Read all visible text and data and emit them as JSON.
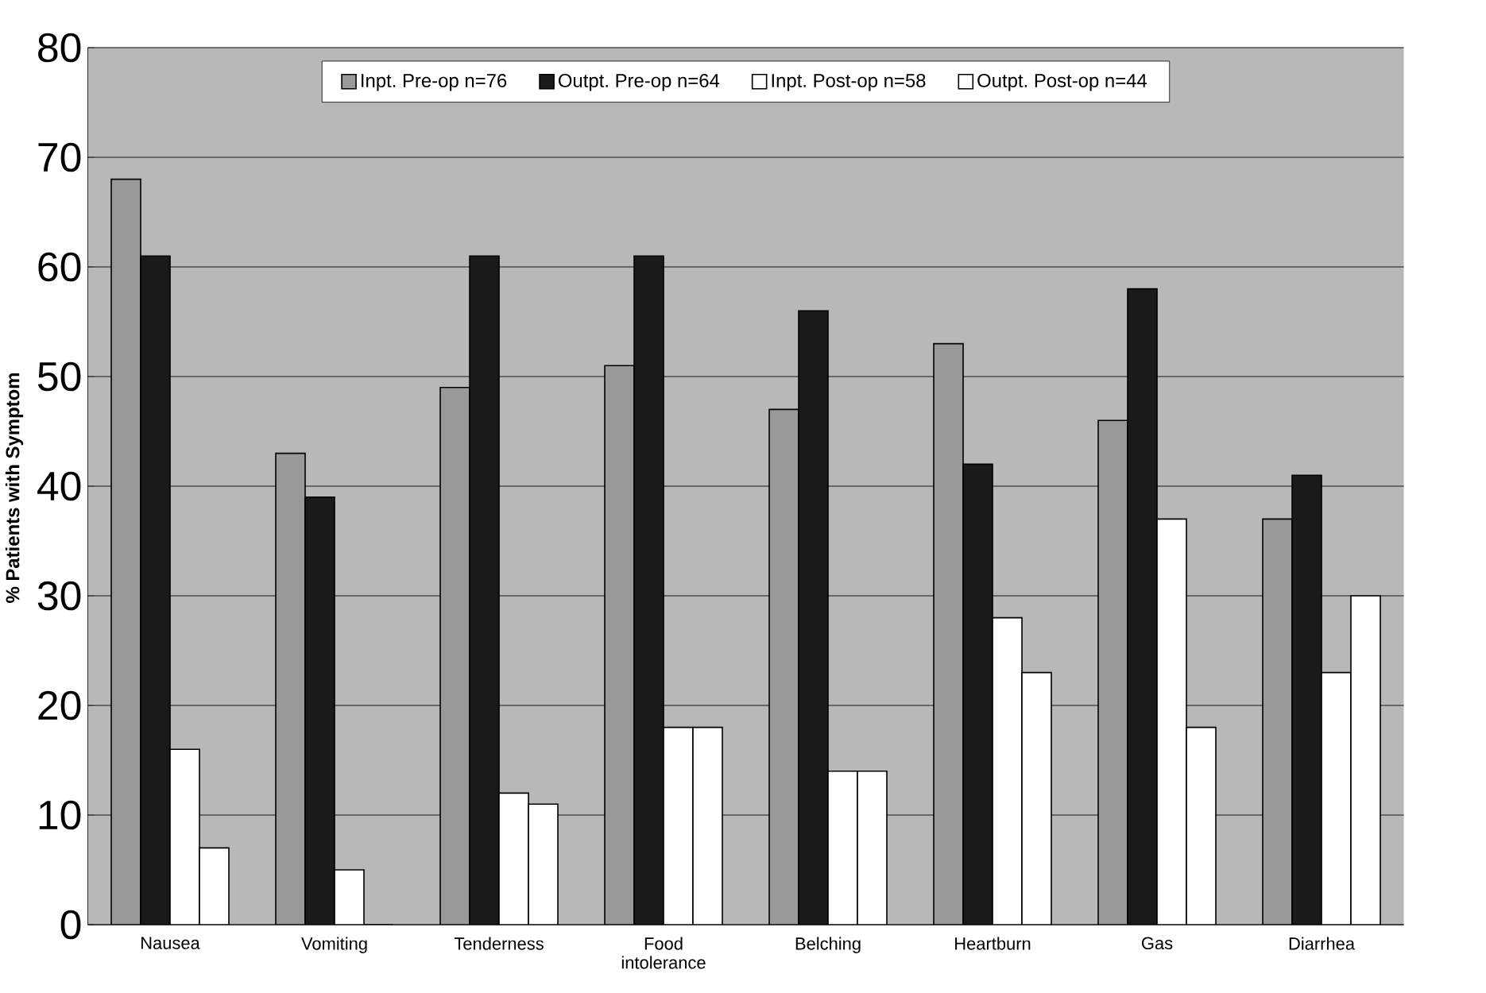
{
  "chart_data": {
    "type": "bar",
    "ylabel": "% Patients with Symptom",
    "categories": [
      "Nausea",
      "Vomiting",
      "Tenderness",
      "Food intolerance",
      "Belching",
      "Heartburn",
      "Gas",
      "Diarrhea"
    ],
    "series": [
      {
        "name": "Inpt. Pre-op n=76",
        "color": "#999999",
        "values": [
          68,
          43,
          49,
          51,
          47,
          53,
          46,
          37
        ]
      },
      {
        "name": "Outpt. Pre-op n=64",
        "color": "#1a1a1a",
        "values": [
          61,
          39,
          61,
          61,
          56,
          42,
          58,
          41
        ]
      },
      {
        "name": "Inpt. Post-op n=58",
        "color": "#ffffff",
        "values": [
          16,
          5,
          12,
          18,
          14,
          28,
          37,
          23
        ]
      },
      {
        "name": "Outpt. Post-op n=44",
        "color": "#ffffff",
        "values": [
          7,
          0,
          11,
          18,
          14,
          23,
          18,
          30
        ]
      }
    ],
    "ylim": [
      0,
      80
    ],
    "yticks": [
      0,
      10,
      20,
      30,
      40,
      50,
      60,
      70,
      80
    ],
    "grid": "y",
    "legend": "top"
  }
}
